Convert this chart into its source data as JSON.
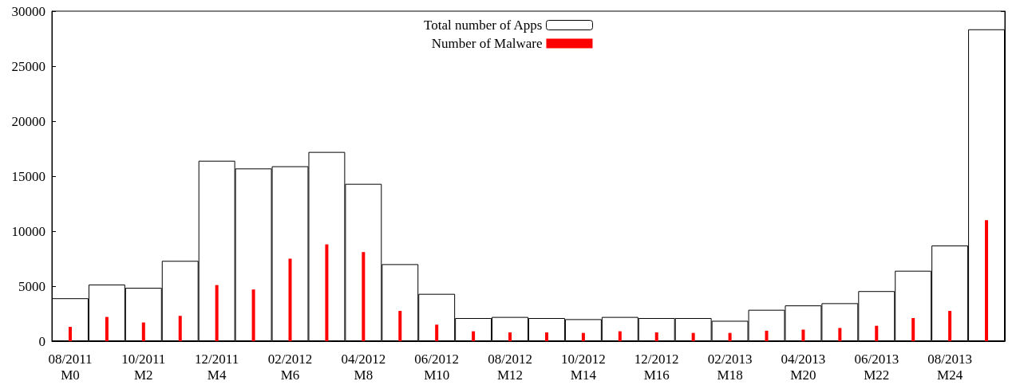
{
  "chart_data": {
    "type": "bar",
    "categories": [
      "08/2011\nM0",
      null,
      "10/2011\nM2",
      null,
      "12/2011\nM4",
      null,
      "02/2012\nM6",
      null,
      "04/2012\nM8",
      null,
      "06/2012\nM10",
      null,
      "08/2012\nM12",
      null,
      "10/2012\nM14",
      null,
      "12/2012\nM16",
      null,
      "02/2013\nM18",
      null,
      "04/2013\nM20",
      null,
      "06/2013\nM22",
      null,
      "08/2013\nM24",
      null
    ],
    "series": [
      {
        "name": "Total number of Apps",
        "color": "#ffffff",
        "values": [
          3900,
          5150,
          4850,
          7300,
          16400,
          15700,
          15900,
          17200,
          14300,
          7000,
          4300,
          2100,
          2200,
          2100,
          2000,
          2200,
          2100,
          2100,
          1850,
          2850,
          3250,
          3450,
          4550,
          6400,
          8700,
          28350
        ]
      },
      {
        "name": "Number of Malware",
        "color": "#ff0000",
        "values": [
          1300,
          2200,
          1700,
          2300,
          5100,
          4700,
          7500,
          8800,
          8100,
          2750,
          1500,
          900,
          800,
          800,
          750,
          900,
          800,
          750,
          750,
          950,
          1050,
          1200,
          1400,
          2100,
          2750,
          11000
        ]
      }
    ],
    "ylim": [
      0,
      30000
    ],
    "yticks": [
      0,
      5000,
      10000,
      15000,
      20000,
      25000,
      30000
    ],
    "grid": false,
    "legend": "top"
  }
}
